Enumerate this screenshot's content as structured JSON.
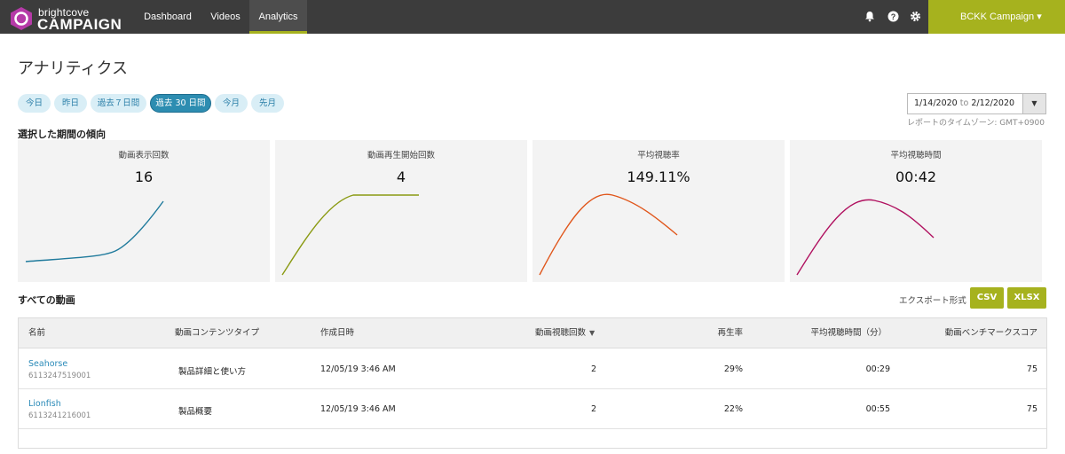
{
  "app": {
    "logo_small": "brightcove",
    "logo_big": "CAMPAIGN"
  },
  "nav": {
    "items": [
      {
        "label": "Dashboard"
      },
      {
        "label": "Videos"
      },
      {
        "label": "Analytics",
        "active": true
      }
    ],
    "icons": [
      "bell-icon",
      "help-icon",
      "gear-icon"
    ],
    "account": "BCKK Campaign ▾"
  },
  "page": {
    "title": "アナリティクス"
  },
  "ranges": [
    {
      "label": "今日"
    },
    {
      "label": "昨日"
    },
    {
      "label": "過去７日間"
    },
    {
      "label": "過去 30 日間",
      "selected": true
    },
    {
      "label": "今月"
    },
    {
      "label": "先月"
    }
  ],
  "date_range": {
    "start": "1/14/2020",
    "to": "to",
    "end": "2/12/2020",
    "caret": "▼",
    "timezone": "レポートのタイムゾーン: GMT+0900"
  },
  "trends": {
    "heading": "選択した期間の傾向",
    "cards": [
      {
        "label": "動画表示回数",
        "value": "16",
        "color": "#1f7a9c"
      },
      {
        "label": "動画再生開始回数",
        "value": "4",
        "color": "#8a9a12"
      },
      {
        "label": "平均視聴率",
        "value": "149.11%",
        "color": "#e0561b"
      },
      {
        "label": "平均視聴時間",
        "value": "00:42",
        "color": "#b0105f"
      }
    ]
  },
  "videos": {
    "heading": "すべての動画",
    "export_label": "エクスポート形式",
    "export_csv": "CSV",
    "export_xlsx": "XLSX",
    "columns": [
      "名前",
      "動画コンテンツタイプ",
      "作成日時",
      "動画視聴回数",
      "再生率",
      "平均視聴時間（分）",
      "動画ベンチマークスコア"
    ],
    "sort_indicator": "▼",
    "rows": [
      {
        "name": "Seahorse",
        "id": "6113247519001",
        "type": "製品詳細と使い方",
        "created": "12/05/19 3:46 AM",
        "views": "2",
        "play_rate": "29%",
        "avg_time": "00:29",
        "score": "75"
      },
      {
        "name": "Lionfish",
        "id": "6113241216001",
        "type": "製品概要",
        "created": "12/05/19 3:46 AM",
        "views": "2",
        "play_rate": "22%",
        "avg_time": "00:55",
        "score": "75"
      }
    ]
  }
}
